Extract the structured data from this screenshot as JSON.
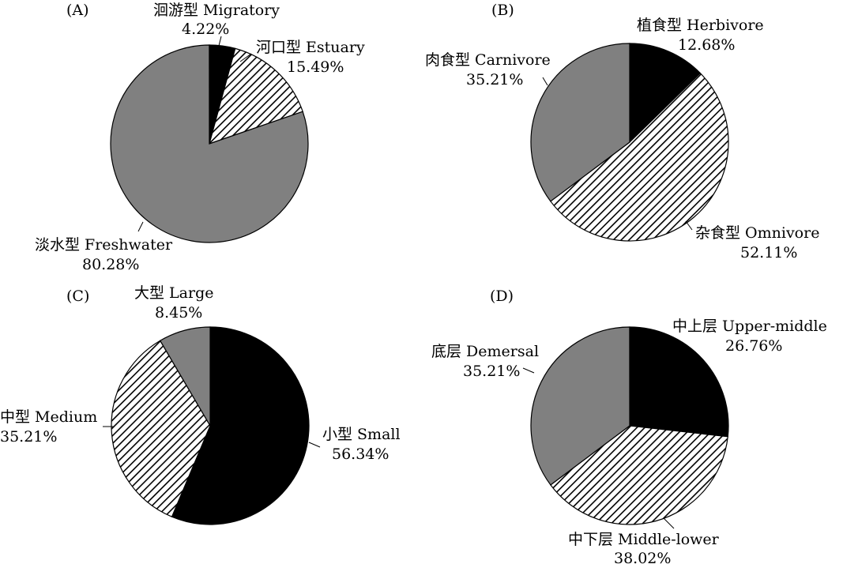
{
  "chart_data": [
    {
      "type": "pie",
      "panel": "(A)",
      "slices": [
        {
          "name": "洄游型 Migratory",
          "pct": 4.22,
          "value": "4.22%",
          "fill": "black"
        },
        {
          "name": "河口型 Estuary",
          "pct": 15.49,
          "value": "15.49%",
          "fill": "hatch"
        },
        {
          "name": "淡水型 Freshwater",
          "pct": 80.28,
          "value": "80.28%",
          "fill": "gray"
        }
      ]
    },
    {
      "type": "pie",
      "panel": "(B)",
      "slices": [
        {
          "name": "植食型 Herbivore",
          "pct": 12.68,
          "value": "12.68%",
          "fill": "black"
        },
        {
          "name": "杂食型 Omnivore",
          "pct": 52.11,
          "value": "52.11%",
          "fill": "hatch"
        },
        {
          "name": "肉食型 Carnivore",
          "pct": 35.21,
          "value": "35.21%",
          "fill": "gray"
        }
      ]
    },
    {
      "type": "pie",
      "panel": "(C)",
      "slices": [
        {
          "name": "小型 Small",
          "pct": 56.34,
          "value": "56.34%",
          "fill": "black"
        },
        {
          "name": "中型 Medium",
          "pct": 35.21,
          "value": "35.21%",
          "fill": "hatch"
        },
        {
          "name": "大型 Large",
          "pct": 8.45,
          "value": "8.45%",
          "fill": "gray"
        }
      ]
    },
    {
      "type": "pie",
      "panel": "(D)",
      "slices": [
        {
          "name": "中上层 Upper-middle",
          "pct": 26.76,
          "value": "26.76%",
          "fill": "black"
        },
        {
          "name": "中下层 Middle-lower",
          "pct": 38.02,
          "value": "38.02%",
          "fill": "hatch"
        },
        {
          "name": "底层 Demersal",
          "pct": 35.21,
          "value": "35.21%",
          "fill": "gray"
        }
      ]
    }
  ],
  "colors": {
    "black": "#000000",
    "gray": "#808080",
    "hatch_background": "#ffffff",
    "hatch_line": "#000000",
    "outline": "#000000"
  }
}
